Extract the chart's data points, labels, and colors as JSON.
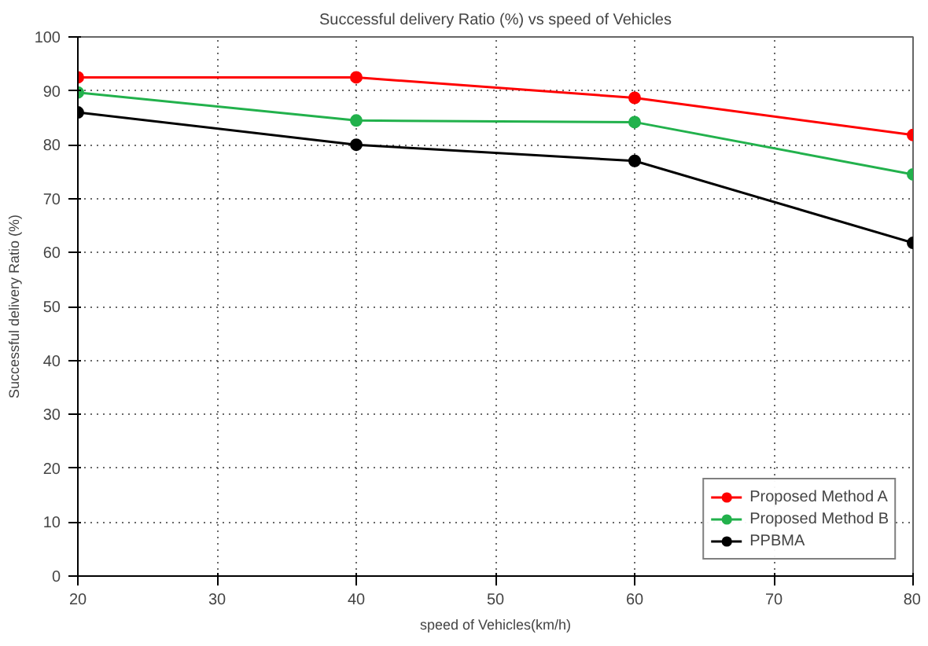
{
  "chart_data": {
    "type": "line",
    "title": "Successful delivery Ratio (%) vs speed of Vehicles",
    "xlabel": "speed of Vehicles(km/h)",
    "ylabel": "Successful delivery Ratio (%)",
    "x": [
      20,
      40,
      60,
      80
    ],
    "series": [
      {
        "name": "Proposed Method A",
        "color": "#ff0000",
        "values": [
          92.5,
          92.5,
          88.7,
          81.8
        ]
      },
      {
        "name": "Proposed Method B",
        "color": "#22b14c",
        "values": [
          89.7,
          84.5,
          84.2,
          74.5
        ]
      },
      {
        "name": "PPBMA",
        "color": "#000000",
        "values": [
          86,
          80,
          77,
          61.8
        ]
      }
    ],
    "xlim": [
      20,
      80
    ],
    "xticks": [
      20,
      30,
      40,
      50,
      60,
      70,
      80
    ],
    "ylim": [
      0,
      100
    ],
    "yticks": [
      0,
      10,
      20,
      30,
      40,
      50,
      60,
      70,
      80,
      90,
      100
    ],
    "grid": true,
    "legend": "bottom right",
    "marker": "circle",
    "line_style": "solid"
  }
}
